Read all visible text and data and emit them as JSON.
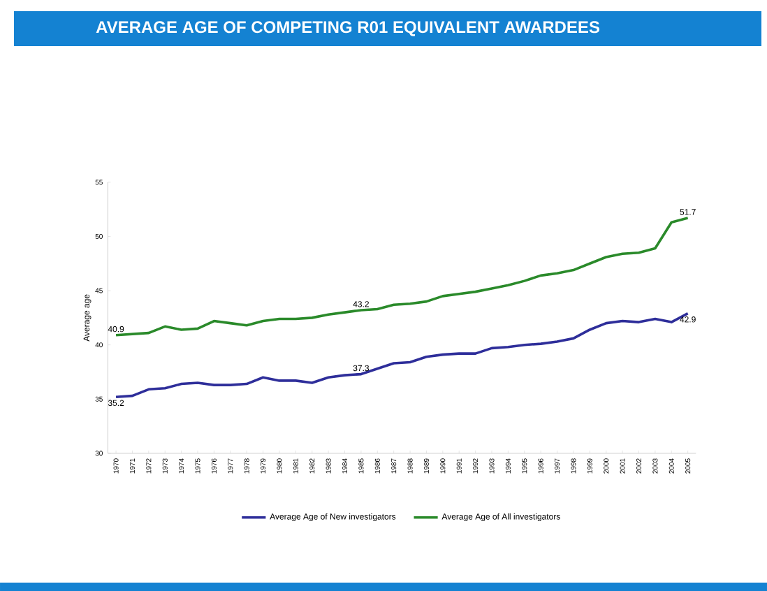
{
  "chart_data": {
    "type": "line",
    "title": "AVERAGE AGE OF COMPETING R01 EQUIVALENT AWARDEES",
    "ylabel": "Average age",
    "categories": [
      "1970",
      "1971",
      "1972",
      "1973",
      "1974",
      "1975",
      "1976",
      "1977",
      "1978",
      "1979",
      "1980",
      "1981",
      "1982",
      "1983",
      "1984",
      "1985",
      "1986",
      "1987",
      "1988",
      "1989",
      "1990",
      "1991",
      "1992",
      "1993",
      "1994",
      "1995",
      "1996",
      "1997",
      "1998",
      "1999",
      "2000",
      "2001",
      "2002",
      "2003",
      "2004",
      "2005"
    ],
    "series": [
      {
        "name": "Average Age of New investigators",
        "color": "#2e2e9a",
        "values": [
          35.2,
          35.3,
          35.9,
          36.0,
          36.4,
          36.5,
          36.3,
          36.3,
          36.4,
          37.0,
          36.7,
          36.7,
          36.5,
          37.0,
          37.2,
          37.3,
          37.8,
          38.3,
          38.4,
          38.9,
          39.1,
          39.2,
          39.2,
          39.7,
          39.8,
          40.0,
          40.1,
          40.3,
          40.6,
          41.4,
          42.0,
          42.2,
          42.1,
          42.4,
          42.1,
          42.9
        ]
      },
      {
        "name": "Average Age of All investigators",
        "color": "#2a8a2a",
        "values": [
          40.9,
          41.0,
          41.1,
          41.7,
          41.4,
          41.5,
          42.2,
          42.0,
          41.8,
          42.2,
          42.4,
          42.4,
          42.5,
          42.8,
          43.0,
          43.2,
          43.3,
          43.7,
          43.8,
          44.0,
          44.5,
          44.7,
          44.9,
          45.2,
          45.5,
          45.9,
          46.4,
          46.6,
          46.9,
          47.5,
          48.1,
          48.4,
          48.5,
          48.9,
          51.3,
          51.7
        ]
      }
    ],
    "ylim": [
      30,
      55
    ],
    "yticks": [
      30,
      35,
      40,
      45,
      50,
      55
    ],
    "legend": "bottom",
    "grid": false,
    "marker": "none",
    "line_style": "solid",
    "annotations": [
      {
        "text": "35.2",
        "x": "1970",
        "y": 35.2
      },
      {
        "text": "37.3",
        "x": "1985",
        "y": 37.3
      },
      {
        "text": "42.9",
        "x": "2005",
        "y": 42.9
      },
      {
        "text": "40.9",
        "x": "1970",
        "y": 40.9
      },
      {
        "text": "43.2",
        "x": "1985",
        "y": 43.2
      },
      {
        "text": "51.7",
        "x": "2005",
        "y": 51.7
      }
    ]
  }
}
